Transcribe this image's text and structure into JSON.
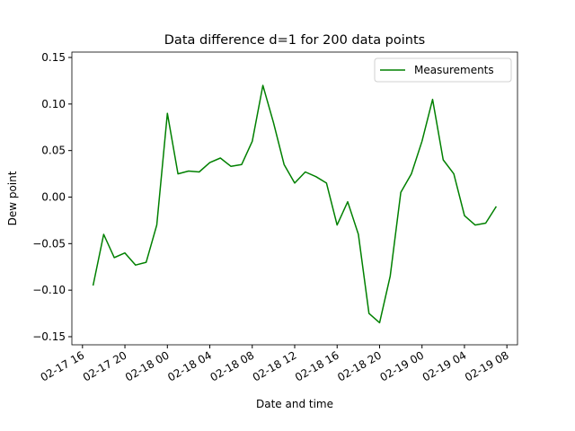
{
  "chart_data": {
    "type": "line",
    "title": "Data difference d=1 for 200 data points",
    "x_label": "Date and time",
    "y_label": "Dew point",
    "x": [
      "02-17 17",
      "02-17 18",
      "02-17 19",
      "02-17 20",
      "02-17 21",
      "02-17 22",
      "02-17 23",
      "02-18 00",
      "02-18 01",
      "02-18 02",
      "02-18 03",
      "02-18 04",
      "02-18 05",
      "02-18 06",
      "02-18 07",
      "02-18 08",
      "02-18 09",
      "02-18 10",
      "02-18 11",
      "02-18 12",
      "02-18 13",
      "02-18 14",
      "02-18 15",
      "02-18 16",
      "02-18 17",
      "02-18 18",
      "02-18 19",
      "02-18 20",
      "02-18 21",
      "02-18 22",
      "02-18 23",
      "02-19 00",
      "02-19 01",
      "02-19 02",
      "02-19 03",
      "02-19 04",
      "02-19 05",
      "02-19 06",
      "02-19 07"
    ],
    "series": [
      {
        "name": "Measurements",
        "color": "#008000",
        "values": [
          -0.095,
          -0.04,
          -0.065,
          -0.06,
          -0.073,
          -0.07,
          -0.03,
          0.09,
          0.025,
          0.028,
          0.027,
          0.037,
          0.042,
          0.033,
          0.035,
          0.06,
          0.12,
          0.08,
          0.035,
          0.015,
          0.027,
          0.022,
          0.015,
          -0.03,
          -0.005,
          -0.04,
          -0.125,
          -0.135,
          -0.085,
          0.005,
          0.025,
          0.06,
          0.105,
          0.04,
          0.025,
          -0.02,
          -0.03,
          -0.028,
          -0.01
        ]
      }
    ],
    "xlim": [
      "02-17 15",
      "02-19 09"
    ],
    "xticks": [
      "02-17 16",
      "02-17 20",
      "02-18 00",
      "02-18 04",
      "02-18 08",
      "02-18 12",
      "02-18 16",
      "02-18 20",
      "02-19 00",
      "02-19 04",
      "02-19 08"
    ],
    "ylim": [
      -0.1587,
      0.1558
    ],
    "yticks": [
      {
        "value": -0.15,
        "label": "−0.15"
      },
      {
        "value": -0.1,
        "label": "−0.10"
      },
      {
        "value": -0.05,
        "label": "−0.05"
      },
      {
        "value": 0,
        "label": "0.00"
      },
      {
        "value": 0.05,
        "label": "0.05"
      },
      {
        "value": 0.1,
        "label": "0.10"
      },
      {
        "value": 0.15,
        "label": "0.15"
      }
    ],
    "legend": "upper right"
  }
}
